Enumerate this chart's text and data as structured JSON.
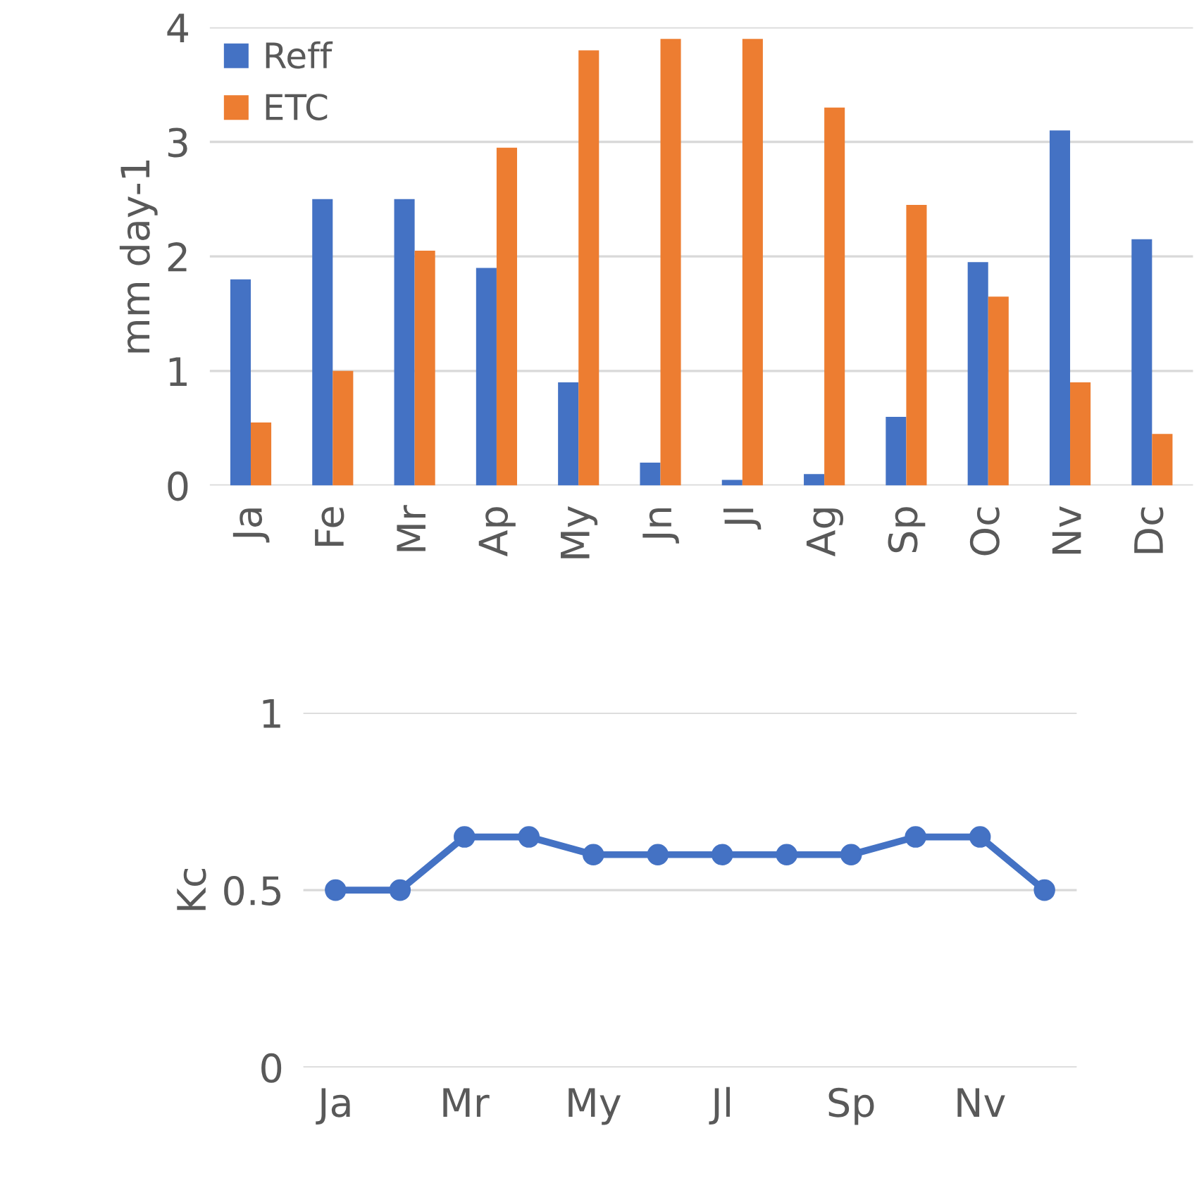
{
  "chart_data": [
    {
      "type": "bar",
      "categories": [
        "Ja",
        "Fe",
        "Mr",
        "Ap",
        "My",
        "Jn",
        "Jl",
        "Ag",
        "Sp",
        "Oc",
        "Nv",
        "Dc"
      ],
      "series": [
        {
          "name": "Reff",
          "color": "#4472c4",
          "values": [
            1.8,
            2.5,
            2.5,
            1.9,
            0.9,
            0.2,
            0.05,
            0.1,
            0.6,
            1.95,
            3.1,
            2.15
          ]
        },
        {
          "name": "ETC",
          "color": "#ed7d31",
          "values": [
            0.55,
            1.0,
            2.05,
            2.95,
            3.8,
            3.9,
            3.9,
            3.3,
            2.45,
            1.65,
            0.9,
            0.45
          ]
        }
      ],
      "ylabel": "mm day-1",
      "ylim": [
        0,
        4
      ],
      "yticks": [
        0,
        1,
        2,
        3,
        4
      ],
      "grid": "y",
      "legend": "top left"
    },
    {
      "type": "line",
      "categories": [
        "Ja",
        null,
        "Mr",
        null,
        "My",
        null,
        "Jl",
        null,
        "Sp",
        null,
        "Nv",
        null
      ],
      "series": [
        {
          "color": "#4472c4",
          "values": [
            0.5,
            0.5,
            0.65,
            0.65,
            0.6,
            0.6,
            0.6,
            0.6,
            0.6,
            0.65,
            0.65,
            0.5
          ]
        }
      ],
      "ylabel": "Kc",
      "ylim": [
        0,
        1
      ],
      "yticks": [
        0,
        0.5,
        1
      ],
      "grid": "y",
      "marker": "circle",
      "line_style": "solid"
    }
  ]
}
